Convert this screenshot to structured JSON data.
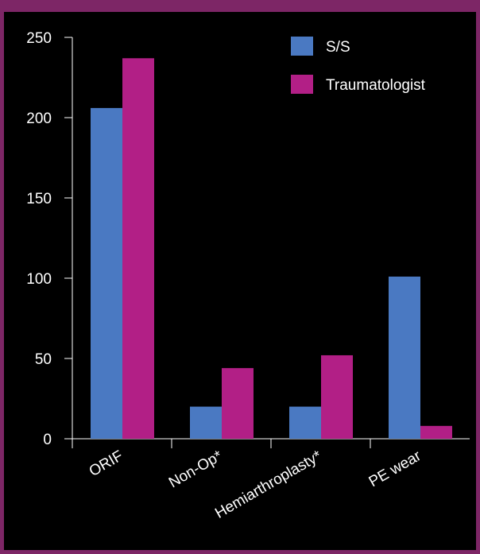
{
  "chart_data": {
    "type": "bar",
    "categories": [
      "ORIF",
      "Non-Op*",
      "Hemiarthroplasty*",
      "PE wear"
    ],
    "series": [
      {
        "name": "S/S",
        "color": "#4a79c2",
        "values": [
          206,
          20,
          20,
          101
        ]
      },
      {
        "name": "Traumatologist",
        "color": "#b21f86",
        "values": [
          237,
          44,
          52,
          8
        ]
      }
    ],
    "ylim": [
      0,
      250
    ],
    "yticks": [
      0,
      50,
      100,
      150,
      200,
      250
    ],
    "legend_position": "top-right",
    "grid": false,
    "background": "#000000",
    "frame_color": "#7d2666",
    "axis_color": "#ffffff"
  }
}
